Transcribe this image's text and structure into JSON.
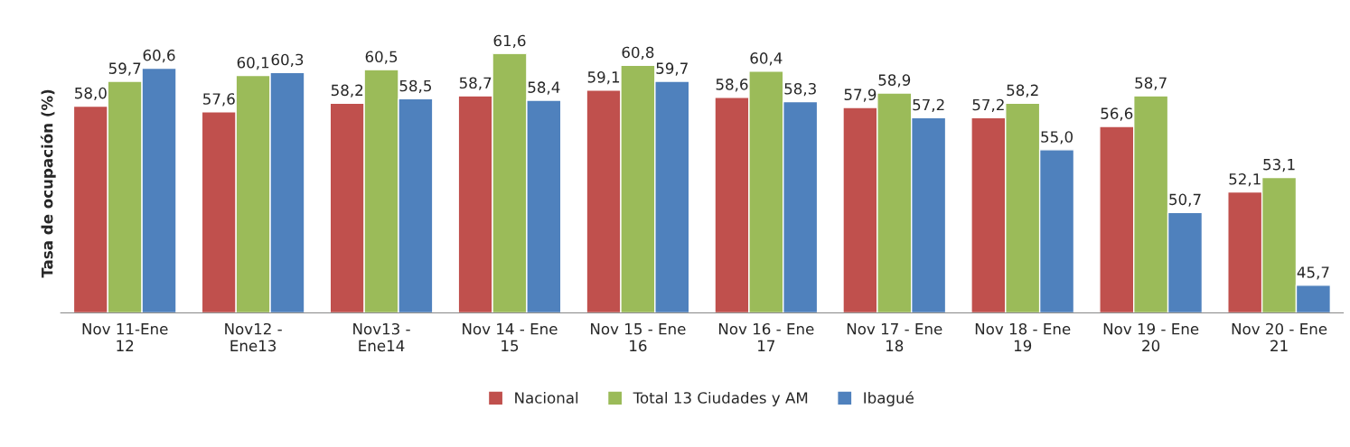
{
  "chart_data": {
    "type": "bar",
    "ylabel": "Tasa de ocupación (%)",
    "categories": [
      "Nov 11-Ene\n12",
      "Nov12 -\nEne13",
      "Nov13 -\nEne14",
      "Nov 14 - Ene\n15",
      "Nov 15 - Ene\n16",
      "Nov 16 - Ene\n17",
      "Nov 17 - Ene\n18",
      "Nov 18 - Ene\n19",
      "Nov 19 - Ene\n20",
      "Nov 20 - Ene\n21"
    ],
    "series": [
      {
        "name": "Nacional",
        "color": "#c0504d",
        "values": [
          58.0,
          57.6,
          58.2,
          58.7,
          59.1,
          58.6,
          57.9,
          57.2,
          56.6,
          52.1
        ],
        "value_labels": [
          "58,0",
          "57,6",
          "58,2",
          "58,7",
          "59,1",
          "58,6",
          "57,9",
          "57,2",
          "56,6",
          "52,1"
        ]
      },
      {
        "name": "Total 13 Ciudades y AM",
        "color": "#9bbb59",
        "values": [
          59.7,
          60.1,
          60.5,
          61.6,
          60.8,
          60.4,
          58.9,
          58.2,
          58.7,
          53.1
        ],
        "value_labels": [
          "59,7",
          "60,1",
          "60,5",
          "61,6",
          "60,8",
          "60,4",
          "58,9",
          "58,2",
          "58,7",
          "53,1"
        ]
      },
      {
        "name": "Ibagué",
        "color": "#4f81bd",
        "values": [
          60.6,
          60.3,
          58.5,
          58.4,
          59.7,
          58.3,
          57.2,
          55.0,
          50.7,
          45.7
        ],
        "value_labels": [
          "60,6",
          "60,3",
          "58,5",
          "58,4",
          "59,7",
          "58,3",
          "57,2",
          "55,0",
          "50,7",
          "45,7"
        ]
      }
    ],
    "ylim": [
      43.8,
      61.6
    ],
    "tick_labels": "x",
    "grid": false,
    "legend": "bottom"
  }
}
